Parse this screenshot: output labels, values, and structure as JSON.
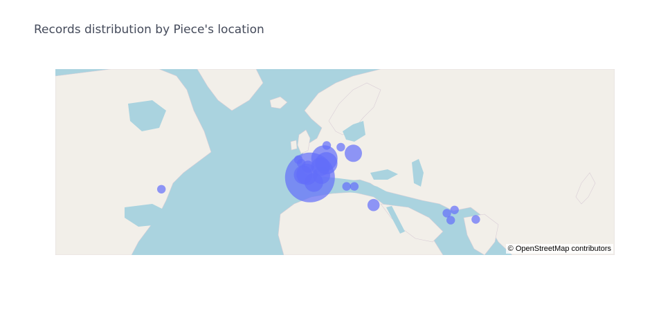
{
  "title": "Records distribution by Piece's location",
  "attribution": "© OpenStreetMap contributors",
  "colors": {
    "water": "#aad3df",
    "land": "#f2efe9",
    "border": "#c9a9c4",
    "marker": "#636efa"
  },
  "map": {
    "basemap": "OpenStreetMap",
    "view": "Europe-centred world map (North America to Japan)"
  },
  "chart_data": {
    "type": "scatter-geo",
    "title": "Records distribution by Piece's location",
    "marker_color": "#636efa",
    "points": [
      {
        "lon": 2.0,
        "lat": 46.5,
        "size": 100
      },
      {
        "lon": 0.5,
        "lat": 48.0,
        "size": 18
      },
      {
        "lon": 4.0,
        "lat": 44.0,
        "size": 14
      },
      {
        "lon": 8.0,
        "lat": 47.5,
        "size": 12
      },
      {
        "lon": -1.5,
        "lat": 47.8,
        "size": 14
      },
      {
        "lon": 9.5,
        "lat": 55.0,
        "size": 28
      },
      {
        "lon": 10.5,
        "lat": 53.0,
        "size": 20
      },
      {
        "lon": 7.5,
        "lat": 51.5,
        "size": 14
      },
      {
        "lon": 1.0,
        "lat": 51.5,
        "size": 6
      },
      {
        "lon": 24.5,
        "lat": 57.0,
        "size": 12
      },
      {
        "lon": 18.0,
        "lat": 59.3,
        "size": 3
      },
      {
        "lon": 10.7,
        "lat": 59.9,
        "size": 3
      },
      {
        "lon": -4.0,
        "lat": 54.5,
        "size": 3
      },
      {
        "lon": -2.5,
        "lat": 53.0,
        "size": 3
      },
      {
        "lon": 21.0,
        "lat": 42.0,
        "size": 3
      },
      {
        "lon": 25.0,
        "lat": 42.0,
        "size": 3
      },
      {
        "lon": 35.0,
        "lat": 31.5,
        "size": 6
      },
      {
        "lon": 73.0,
        "lat": 26.5,
        "size": 3
      },
      {
        "lon": 77.0,
        "lat": 28.5,
        "size": 3
      },
      {
        "lon": 75.0,
        "lat": 22.0,
        "size": 3
      },
      {
        "lon": 88.0,
        "lat": 22.5,
        "size": 3
      },
      {
        "lon": -75.0,
        "lat": 40.5,
        "size": 3
      }
    ]
  }
}
